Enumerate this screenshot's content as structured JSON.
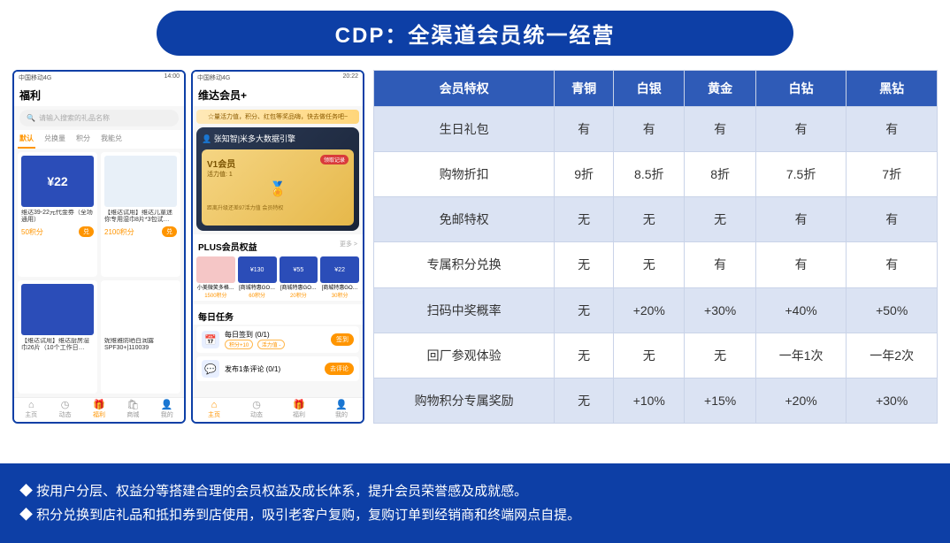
{
  "title": "CDP：全渠道会员统一经营",
  "colors": {
    "brand": "#0d3fa6",
    "tableHeader": "#2f5bb7",
    "tableOdd": "#dbe3f3",
    "accent": "#ff9500"
  },
  "phone1": {
    "carrier": "中国移动4G",
    "time": "14:00",
    "header": "福利",
    "searchPlaceholder": "请输入搜索的礼品名称",
    "tabs": [
      "默认",
      "兑换量",
      "积分",
      "我能兑"
    ],
    "activeTab": 0,
    "products": [
      {
        "name": "维达39-22元代金券（全场通用）",
        "points": "50积分",
        "imgColor": "#2b4db8",
        "imgText": "¥22"
      },
      {
        "name": "【维达试用】维达儿童迷你专用湿巾8片*3包试…",
        "points": "2100积分",
        "imgColor": "#e8f0f8",
        "imgText": ""
      },
      {
        "name": "【维达试用】维达厨房湿巾26片（10个工作日…",
        "points": "",
        "imgColor": "#2b4db8",
        "imgText": ""
      },
      {
        "name": "妮维雅防晒白润露SPF30+|110039",
        "points": "",
        "imgColor": "#ffffff",
        "imgText": "30"
      }
    ],
    "tabbar": [
      "主页",
      "动态",
      "福利",
      "商城",
      "我的"
    ],
    "tabbarActive": 2
  },
  "phone2": {
    "carrier": "中国移动4G",
    "time": "20:22",
    "header": "维达会员+",
    "banner": "☆量活力值，积分、红包等奖品嗨，快去做任务吧~",
    "memberName": "张知智|米多大数据引擎",
    "vipLevel": "V1会员",
    "vipSub": "活力值: 1",
    "vipBadge": "领取记录",
    "vipFoot": "距离升级还差97活力值 会员特权",
    "plusTitle": "PLUS会员权益",
    "more": "更多 >",
    "plusItems": [
      {
        "name": "小美微笑多格…",
        "pts": "1500积分",
        "thumbColor": "#f5c6c6",
        "thumbText": ""
      },
      {
        "name": "[商城特惠GO…",
        "pts": "60积分",
        "thumbColor": "#2b4db8",
        "thumbText": "¥130"
      },
      {
        "name": "[商城特惠GO…",
        "pts": "20积分",
        "thumbColor": "#2b4db8",
        "thumbText": "¥55"
      },
      {
        "name": "[商城特惠GO…",
        "pts": "30积分",
        "thumbColor": "#2b4db8",
        "thumbText": "¥22"
      }
    ],
    "taskTitle": "每日任务",
    "tasks": [
      {
        "name": "每日签到 (0/1)",
        "pills": [
          "积分+10",
          "活力值 -"
        ],
        "btn": "签到",
        "icon": "📅"
      },
      {
        "name": "发布1条评论 (0/1)",
        "pills": [],
        "btn": "去评论",
        "icon": "💬"
      }
    ],
    "tabbar": [
      "主页",
      "动态",
      "福利",
      "我的"
    ],
    "tabbarActive": 0
  },
  "privTable": {
    "header": [
      "会员特权",
      "青铜",
      "白银",
      "黄金",
      "白钻",
      "黑钻"
    ],
    "rows": [
      [
        "生日礼包",
        "有",
        "有",
        "有",
        "有",
        "有"
      ],
      [
        "购物折扣",
        "9折",
        "8.5折",
        "8折",
        "7.5折",
        "7折"
      ],
      [
        "免邮特权",
        "无",
        "无",
        "无",
        "有",
        "有"
      ],
      [
        "专属积分兑换",
        "无",
        "无",
        "有",
        "有",
        "有"
      ],
      [
        "扫码中奖概率",
        "无",
        "+20%",
        "+30%",
        "+40%",
        "+50%"
      ],
      [
        "回厂参观体验",
        "无",
        "无",
        "无",
        "一年1次",
        "一年2次"
      ],
      [
        "购物积分专属奖励",
        "无",
        "+10%",
        "+15%",
        "+20%",
        "+30%"
      ]
    ]
  },
  "footer": [
    "按用户分层、权益分等搭建合理的会员权益及成长体系，提升会员荣誉感及成就感。",
    "积分兑换到店礼品和抵扣券到店使用，吸引老客户复购，复购订单到经销商和终端网点自提。"
  ]
}
